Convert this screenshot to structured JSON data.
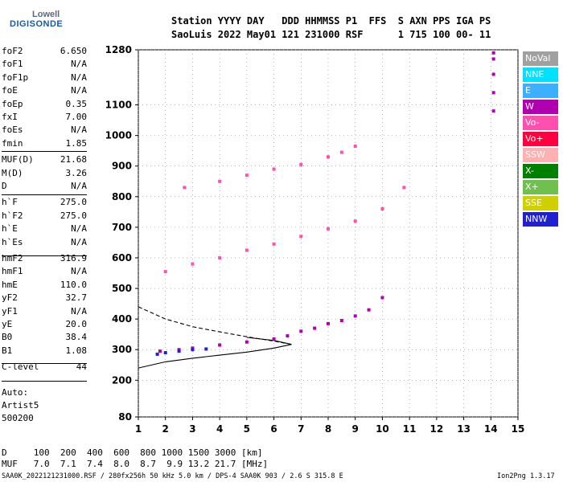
{
  "logo": {
    "line1": "Lowell",
    "line2": "DIGISONDE"
  },
  "header": {
    "labels": "Station YYYY DAY   DDD HHMMSS P1  FFS  S AXN PPS IGA PS",
    "values": "SaoLuis 2022 May01 121 231000 RSF      1 715 100 00- 11"
  },
  "params": [
    {
      "name": "foF2",
      "value": "6.650"
    },
    {
      "name": "foF1",
      "value": "N/A"
    },
    {
      "name": "foF1p",
      "value": "N/A"
    },
    {
      "name": "foE",
      "value": "N/A"
    },
    {
      "name": "foEp",
      "value": "0.35"
    },
    {
      "name": "fxI",
      "value": "7.00"
    },
    {
      "name": "foEs",
      "value": "N/A"
    },
    {
      "name": "fmin",
      "value": "1.85"
    },
    {
      "name": "MUF(D)",
      "value": "21.68"
    },
    {
      "name": "M(D)",
      "value": "3.26"
    },
    {
      "name": "D",
      "value": "N/A"
    },
    {
      "name": "h`F",
      "value": "275.0"
    },
    {
      "name": "h`F2",
      "value": "275.0"
    },
    {
      "name": "h`E",
      "value": "N/A"
    },
    {
      "name": "h`Es",
      "value": "N/A"
    },
    {
      "name": "hmF2",
      "value": "316.9"
    },
    {
      "name": "hmF1",
      "value": "N/A"
    },
    {
      "name": "hmE",
      "value": "110.0"
    },
    {
      "name": "yF2",
      "value": "32.7"
    },
    {
      "name": "yF1",
      "value": "N/A"
    },
    {
      "name": "yE",
      "value": "20.0"
    },
    {
      "name": "B0",
      "value": "38.4"
    },
    {
      "name": "B1",
      "value": "1.08"
    },
    {
      "name": "C-level",
      "value": "44"
    }
  ],
  "footer_left": {
    "line1": "Auto:",
    "line2": "Artist5",
    "line3": "500200"
  },
  "bottom": {
    "d_row": "D     100  200  400  600  800 1000 1500 3000 [km]",
    "muf_row": "MUF   7.0  7.1  7.4  8.0  8.7  9.9 13.2 21.7 [MHz]",
    "file_info": "SAA0K_2022121231000.RSF / 280fx256h 50 kHz 5.0 km / DPS-4 SAA0K 903 / 2.6 S 315.8 E",
    "version": "Ion2Png 1.3.17"
  },
  "legend": [
    {
      "label": "NoVal",
      "color": "#a0a0a0"
    },
    {
      "label": "NNE",
      "color": "#00e0ff"
    },
    {
      "label": "E",
      "color": "#3ab0ff"
    },
    {
      "label": "W",
      "color": "#b000b0"
    },
    {
      "label": "Vo-",
      "color": "#ff50b0"
    },
    {
      "label": "Vo+",
      "color": "#ff0040"
    },
    {
      "label": "SSW",
      "color": "#ffb0b0"
    },
    {
      "label": "X-",
      "color": "#008000"
    },
    {
      "label": "X+",
      "color": "#70c050"
    },
    {
      "label": "SSE",
      "color": "#d0d000"
    },
    {
      "label": "NNW",
      "color": "#2020d0"
    }
  ],
  "chart_data": {
    "type": "scatter",
    "xlabel": "",
    "ylabel": "",
    "xlim": [
      1,
      15
    ],
    "ylim": [
      80,
      1280
    ],
    "x_ticks": [
      "1",
      "2",
      "3",
      "4",
      "5",
      "6",
      "7",
      "8",
      "9",
      "10",
      "11",
      "12",
      "13",
      "14",
      "15"
    ],
    "y_ticks": [
      "80",
      "200",
      "300",
      "400",
      "500",
      "600",
      "700",
      "800",
      "900",
      "1000",
      "1100",
      "1280"
    ],
    "grid": true,
    "traces": [
      {
        "name": "F2 O-trace",
        "color": "#b000b0",
        "x": [
          1.8,
          2.5,
          3.0,
          4.0,
          5.0,
          6.0,
          6.5,
          7.0,
          7.5,
          8.0,
          8.5,
          9.0,
          9.5,
          10.0
        ],
        "y": [
          295,
          300,
          305,
          315,
          325,
          335,
          345,
          360,
          370,
          385,
          395,
          410,
          430,
          470
        ]
      },
      {
        "name": "2F2 multi-hop",
        "color": "#ff50b0",
        "x": [
          2.0,
          3.0,
          4.0,
          5.0,
          6.0,
          7.0,
          8.0,
          9.0,
          10.0,
          10.8
        ],
        "y": [
          555,
          580,
          600,
          625,
          645,
          670,
          695,
          720,
          760,
          830
        ]
      },
      {
        "name": "3F2 multi-hop",
        "color": "#ff50b0",
        "x": [
          2.7,
          4.0,
          5.0,
          6.0,
          7.0,
          8.0,
          8.5,
          9.0
        ],
        "y": [
          830,
          850,
          870,
          890,
          905,
          930,
          945,
          965
        ]
      },
      {
        "name": "F2 X-trace",
        "color": "#2020d0",
        "x": [
          1.7,
          2.0,
          2.5,
          3.0,
          3.5
        ],
        "y": [
          285,
          290,
          295,
          300,
          302
        ]
      },
      {
        "name": "vertical W",
        "color": "#b000b0",
        "x": [
          14.1,
          14.1,
          14.1,
          14.1,
          14.1
        ],
        "y": [
          1080,
          1140,
          1200,
          1250,
          1270
        ]
      }
    ],
    "profile_solid": {
      "x": [
        1.0,
        2.0,
        3.0,
        4.0,
        5.0,
        6.0,
        6.65,
        6.0,
        5.0
      ],
      "y": [
        240,
        260,
        272,
        282,
        292,
        305,
        317,
        330,
        340
      ]
    },
    "profile_dashed": {
      "x": [
        1.0,
        2.0,
        3.0,
        4.0,
        5.0,
        6.0,
        6.65
      ],
      "y": [
        440,
        400,
        375,
        358,
        342,
        328,
        317
      ]
    }
  }
}
